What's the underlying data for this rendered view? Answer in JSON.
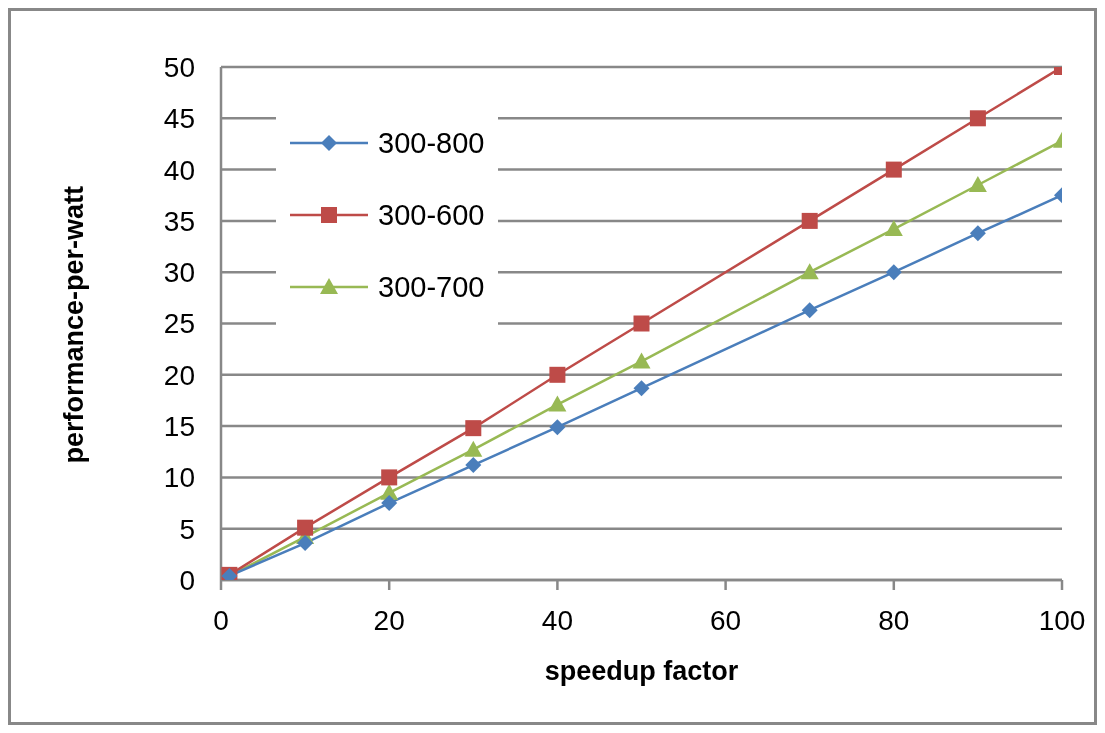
{
  "chart_data": {
    "type": "line",
    "xlabel": "speedup factor",
    "ylabel": "performance-per-watt",
    "x": [
      1,
      10,
      20,
      30,
      40,
      50,
      70,
      80,
      90,
      100
    ],
    "xlim": [
      0,
      100
    ],
    "xticks": [
      0,
      20,
      40,
      60,
      80,
      100
    ],
    "ylim": [
      0,
      50
    ],
    "yticks": [
      0,
      5,
      10,
      15,
      20,
      25,
      30,
      35,
      40,
      45,
      50
    ],
    "grid": "y",
    "legend": "top left",
    "line_style": "solid",
    "series": [
      {
        "name": "300-800",
        "color": "#4a7ebb",
        "marker": "diamond",
        "values": [
          0.4,
          3.6,
          7.5,
          11.2,
          14.9,
          18.7,
          26.3,
          30.0,
          33.8,
          37.5
        ]
      },
      {
        "name": "300-600",
        "color": "#be4b48",
        "marker": "square",
        "values": [
          0.5,
          5.1,
          10,
          14.8,
          20,
          25,
          35,
          40,
          45,
          50
        ]
      },
      {
        "name": "300-700",
        "color": "#98b954",
        "marker": "triangle",
        "values": [
          0.4,
          4.2,
          8.5,
          12.7,
          17.1,
          21.3,
          30,
          34.2,
          38.5,
          42.8
        ]
      }
    ]
  }
}
